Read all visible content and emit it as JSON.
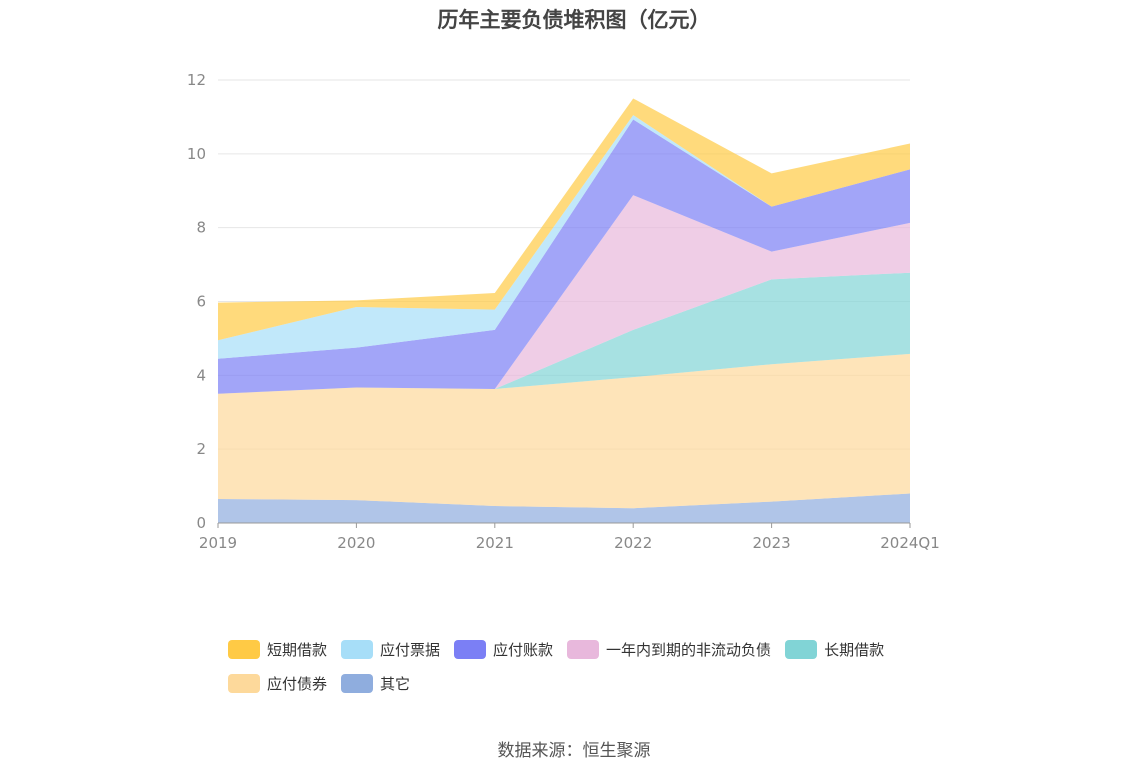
{
  "chart_data": {
    "type": "area",
    "stacked": true,
    "title": "历年主要负债堆积图（亿元）",
    "categories": [
      "2019",
      "2020",
      "2021",
      "2022",
      "2023",
      "2024Q1"
    ],
    "ylim": [
      0,
      12
    ],
    "yticks": [
      "0",
      "2",
      "4",
      "6",
      "8",
      "10",
      "12"
    ],
    "grid": true,
    "legend_position": "bottom",
    "series": [
      {
        "name": "其它",
        "color": "#8fadde",
        "values": [
          0.65,
          0.62,
          0.46,
          0.4,
          0.58,
          0.8
        ]
      },
      {
        "name": "应付债券",
        "color": "#fdd99b",
        "values": [
          2.85,
          3.05,
          3.17,
          3.55,
          3.72,
          3.78
        ]
      },
      {
        "name": "长期借款",
        "color": "#81d4d6",
        "values": [
          0.0,
          0.0,
          0.0,
          1.28,
          2.3,
          2.2
        ]
      },
      {
        "name": "一年内到期的非流动负债",
        "color": "#e8b8dc",
        "values": [
          0.0,
          0.0,
          0.0,
          3.65,
          0.75,
          1.35
        ]
      },
      {
        "name": "应付账款",
        "color": "#7b7ff5",
        "values": [
          0.95,
          1.08,
          1.6,
          2.05,
          1.22,
          1.45
        ]
      },
      {
        "name": "应付票据",
        "color": "#a7def8",
        "values": [
          0.5,
          1.1,
          0.55,
          0.12,
          0.0,
          0.0
        ]
      },
      {
        "name": "短期借款",
        "color": "#ffca45",
        "values": [
          1.02,
          0.18,
          0.45,
          0.45,
          0.9,
          0.7
        ]
      }
    ],
    "legend_order": [
      "短期借款",
      "应付票据",
      "应付账款",
      "一年内到期的非流动负债",
      "长期借款",
      "应付债券",
      "其它"
    ]
  },
  "source": "数据来源：恒生聚源"
}
